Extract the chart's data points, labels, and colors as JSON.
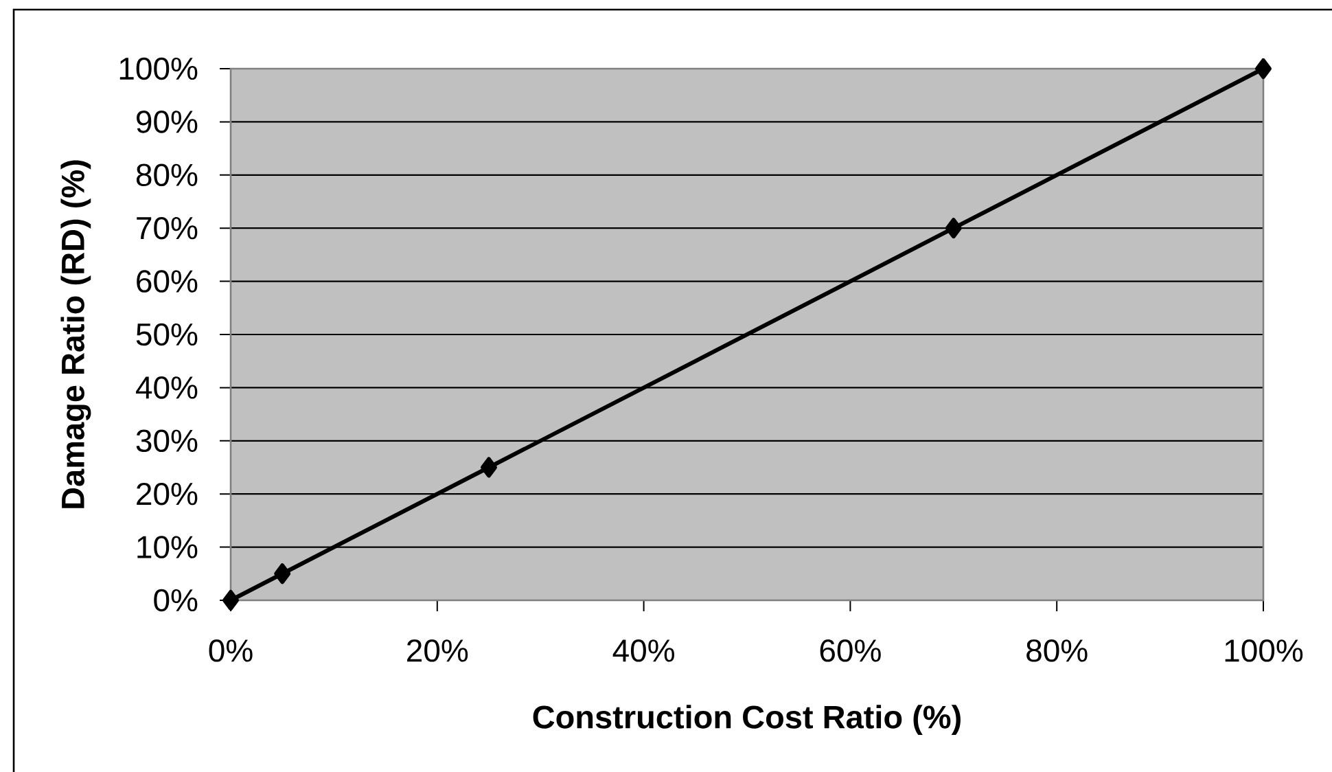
{
  "chart_data": {
    "type": "line",
    "xlabel": "Construction Cost Ratio (%)",
    "ylabel": "Damage Ratio (RD) (%)",
    "x": [
      0,
      5,
      25,
      70,
      100
    ],
    "values": [
      0,
      5,
      25,
      70,
      100
    ],
    "color": "#000000",
    "marker": "diamond",
    "line_style": "solid",
    "grid": "y",
    "xlim": [
      0,
      100
    ],
    "ylim": [
      0,
      100
    ],
    "xticks": [
      {
        "value": 0,
        "label": "0%"
      },
      {
        "value": 20,
        "label": "20%"
      },
      {
        "value": 40,
        "label": "40%"
      },
      {
        "value": 60,
        "label": "60%"
      },
      {
        "value": 80,
        "label": "80%"
      },
      {
        "value": 100,
        "label": "100%"
      }
    ],
    "yticks": [
      {
        "value": 0,
        "label": "0%"
      },
      {
        "value": 10,
        "label": "10%"
      },
      {
        "value": 20,
        "label": "20%"
      },
      {
        "value": 30,
        "label": "30%"
      },
      {
        "value": 40,
        "label": "40%"
      },
      {
        "value": 50,
        "label": "50%"
      },
      {
        "value": 60,
        "label": "60%"
      },
      {
        "value": 70,
        "label": "70%"
      },
      {
        "value": 80,
        "label": "80%"
      },
      {
        "value": 90,
        "label": "90%"
      },
      {
        "value": 100,
        "label": "100%"
      }
    ]
  }
}
